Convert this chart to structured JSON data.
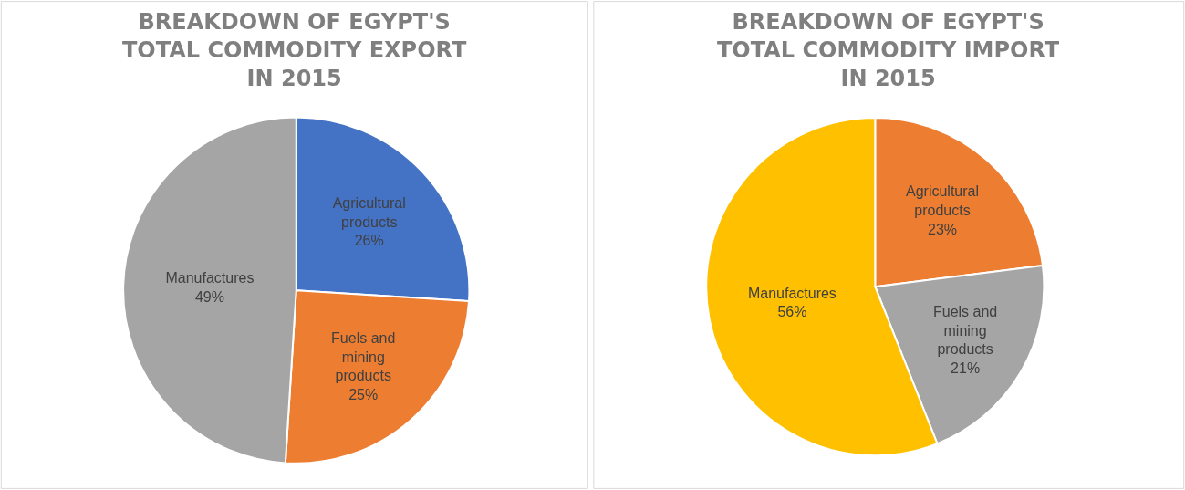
{
  "chart_data": [
    {
      "type": "pie",
      "title": "BREAKDOWN OF EGYPT'S TOTAL COMMODITY EXPORT IN 2015",
      "categories": [
        "Agricultural products",
        "Fuels and mining products",
        "Manufactures"
      ],
      "values": [
        26,
        25,
        49
      ],
      "value_labels": [
        "26%",
        "25%",
        "49%"
      ],
      "colors": [
        "#4472c4",
        "#ed7d31",
        "#a5a5a5"
      ],
      "legend": false
    },
    {
      "type": "pie",
      "title": "BREAKDOWN OF EGYPT'S TOTAL COMMODITY IMPORT IN 2015",
      "categories": [
        "Agricultural products",
        "Fuels and mining products",
        "Manufactures"
      ],
      "values": [
        23,
        21,
        56
      ],
      "value_labels": [
        "23%",
        "21%",
        "56%"
      ],
      "colors": [
        "#ed7d31",
        "#a5a5a5",
        "#ffc000"
      ],
      "legend": false
    }
  ]
}
